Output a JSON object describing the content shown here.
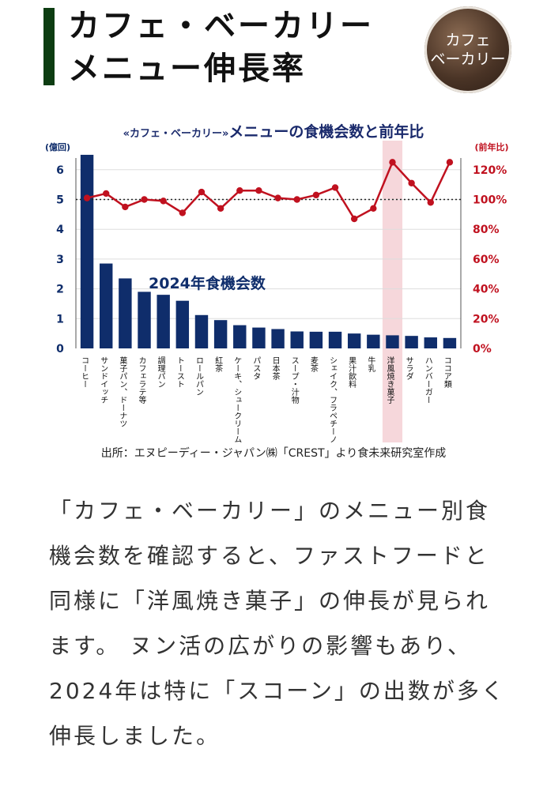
{
  "header": {
    "title_line1": "カフェ・ベーカリー",
    "title_line2": "メニュー伸長率",
    "badge_line1": "カフェ",
    "badge_line2": "ベーカリー"
  },
  "chart_title": {
    "prefix": "«カフェ・ベーカリー»",
    "main": "メニューの食機会数と前年比"
  },
  "source": "出所：エヌピーディー・ジャパン㈱「CREST」より食未来研究室作成",
  "body_text": "「カフェ・ベーカリー」のメニュー別食機会数を確認すると、ファストフードと同様に「洋風焼き菓子」の伸長が見られます。 ヌン活の広がりの影響もあり、2024年は特に「スコーン」の出数が多く伸長しました。",
  "colors": {
    "bar": "#0f2d6b",
    "line": "#c0111f",
    "highlight": "#f6d7db",
    "left_axis": "#0f2d6b",
    "right_axis": "#c0111f"
  },
  "chart_data": {
    "type": "bar",
    "categories": [
      "コーヒー",
      "サンドイッチ",
      "菓子パン、ドーナツ",
      "カフェラテ等",
      "調理パン",
      "トースト",
      "ロールパン",
      "紅茶",
      "ケーキ、シュークリーム",
      "パスタ",
      "日本茶",
      "スープ・汁物",
      "麦茶",
      "シェイク、フラペチーノ",
      "果汁飲料",
      "牛乳",
      "洋風焼き菓子",
      "サラダ",
      "ハンバーガー",
      "ココア類"
    ],
    "series": [
      {
        "name": "2024年食機会数",
        "axis": "left",
        "values": [
          6.5,
          2.85,
          2.35,
          1.9,
          1.8,
          1.6,
          1.12,
          0.95,
          0.78,
          0.7,
          0.65,
          0.57,
          0.56,
          0.56,
          0.5,
          0.46,
          0.44,
          0.42,
          0.37,
          0.35
        ]
      },
      {
        "axis": "right",
        "values": [
          101,
          104,
          95,
          100,
          99,
          91,
          105,
          94,
          106,
          106,
          101,
          100,
          103,
          108,
          87,
          94,
          125,
          111,
          98,
          125
        ]
      }
    ],
    "left_axis": {
      "label": "(億回)",
      "ticks": [
        "0",
        "1",
        "2",
        "3",
        "4",
        "5",
        "6"
      ],
      "ylim": [
        0,
        6.5
      ]
    },
    "right_axis": {
      "label": "(前年比)",
      "ticks": [
        "0%",
        "20%",
        "40%",
        "60%",
        "80%",
        "100%",
        "120%"
      ],
      "ylim": [
        0,
        130
      ]
    },
    "annotation": "2024年食機会数",
    "highlight_category": "洋風焼き菓子",
    "reference_line": 100,
    "grid": true
  }
}
